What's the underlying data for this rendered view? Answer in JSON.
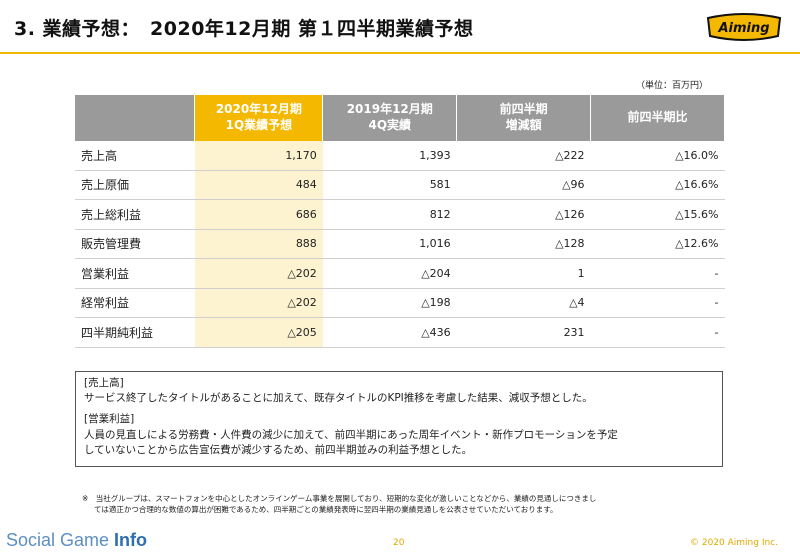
{
  "header": {
    "title": "3. 業績予想：　2020年12月期 第１四半期業績予想",
    "logo_text": "Aiming",
    "accent_color": "#f5b800"
  },
  "unit_label": "（単位：百万円）",
  "table": {
    "columns": [
      {
        "line1": "2020年12月期",
        "line2": "1Q業績予想"
      },
      {
        "line1": "2019年12月期",
        "line2": "4Q実績"
      },
      {
        "line1": "前四半期",
        "line2": "増減額"
      },
      {
        "line1": "前四半期比",
        "line2": ""
      }
    ],
    "rows": [
      {
        "label": "売上高",
        "values": [
          "1,170",
          "1,393",
          "△222",
          "△16.0%"
        ]
      },
      {
        "label": "売上原価",
        "values": [
          "484",
          "581",
          "△96",
          "△16.6%"
        ]
      },
      {
        "label": "売上総利益",
        "values": [
          "686",
          "812",
          "△126",
          "△15.6%"
        ]
      },
      {
        "label": "販売管理費",
        "values": [
          "888",
          "1,016",
          "△128",
          "△12.6%"
        ]
      },
      {
        "label": "営業利益",
        "values": [
          "△202",
          "△204",
          "1",
          "-"
        ]
      },
      {
        "label": "経常利益",
        "values": [
          "△202",
          "△198",
          "△4",
          "-"
        ]
      },
      {
        "label": "四半期純利益",
        "values": [
          "△205",
          "△436",
          "231",
          "-"
        ]
      }
    ]
  },
  "note": {
    "h1": "[売上高]",
    "p1": "サービス終了したタイトルがあることに加えて、既存タイトルのKPI推移を考慮した結果、減収予想とした。",
    "h2": "[営業利益]",
    "p2a": "人員の見直しによる労務費・人件費の減少に加えて、前四半期にあった周年イベント・新作プロモーションを予定",
    "p2b": "していないことから広告宣伝費が減少するため、前四半期並みの利益予想とした。"
  },
  "footnote": {
    "line1": "※　当社グループは、スマートフォンを中心としたオンラインゲーム事業を展開しており、短期的な変化が激しいことなどから、業績の見通しにつきまし",
    "line2": "ては適正かつ合理的な数値の算出が困難であるため、四半期ごとの業績発表時に翌四半期の業績見通しを公表させていただいております。"
  },
  "footer": {
    "brand_part1": "Social Game ",
    "brand_part2": "Info",
    "page_number": "20",
    "copyright": "© 2020 Aiming Inc."
  }
}
